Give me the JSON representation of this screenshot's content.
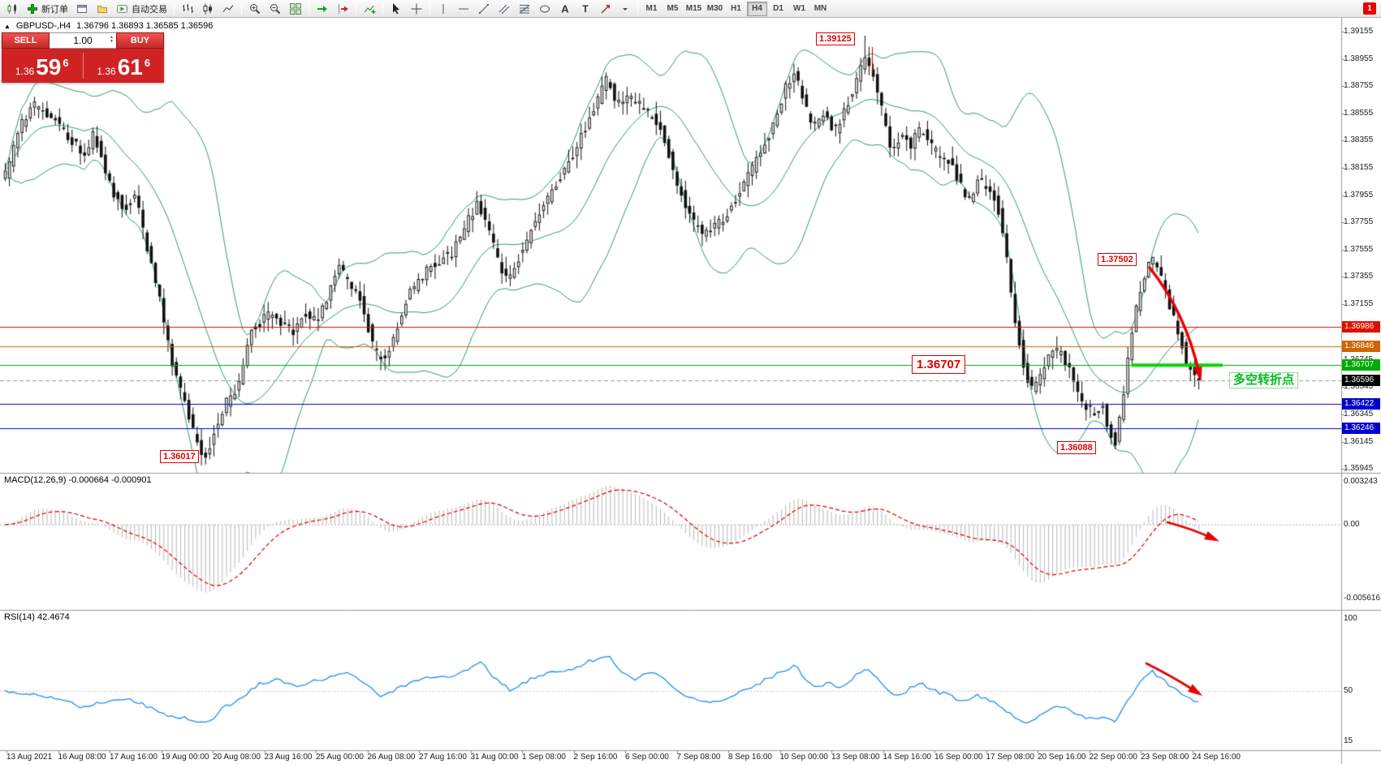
{
  "icons": {
    "collapse_caret": "▲",
    "spin_up": "▲",
    "spin_down": "▼"
  },
  "toolbar": {
    "items": [
      {
        "type": "btn",
        "name": "new-chart",
        "icon": "chart-candles"
      },
      {
        "type": "btn",
        "name": "new-order",
        "icon": "plus-green",
        "label": "新订单"
      },
      {
        "type": "btn",
        "name": "charts-list",
        "icon": "window"
      },
      {
        "type": "btn",
        "name": "profiles",
        "icon": "profile"
      },
      {
        "type": "btn",
        "name": "auto-trading",
        "icon": "autotrade",
        "label": "自动交易"
      },
      {
        "type": "sep"
      },
      {
        "type": "btn",
        "name": "bar-chart-mode",
        "icon": "bars"
      },
      {
        "type": "btn",
        "name": "candle-chart-mode",
        "icon": "candles-mode"
      },
      {
        "type": "btn",
        "name": "line-chart-mode",
        "icon": "line-mode"
      },
      {
        "type": "sep"
      },
      {
        "type": "btn",
        "name": "zoom-in",
        "icon": "zoom-in"
      },
      {
        "type": "btn",
        "name": "zoom-out",
        "icon": "zoom-out"
      },
      {
        "type": "btn",
        "name": "tile-windows",
        "icon": "tile"
      },
      {
        "type": "sep"
      },
      {
        "type": "btn",
        "name": "auto-scroll",
        "icon": "autoscroll"
      },
      {
        "type": "btn",
        "name": "chart-shift",
        "icon": "shift"
      },
      {
        "type": "sep"
      },
      {
        "type": "btn",
        "name": "indicators",
        "icon": "indicators"
      },
      {
        "type": "sep"
      },
      {
        "type": "btn",
        "name": "cursor-tool",
        "icon": "cursor"
      },
      {
        "type": "btn",
        "name": "crosshair-tool",
        "icon": "crosshair"
      },
      {
        "type": "sep"
      },
      {
        "type": "btn",
        "name": "vertical-line-tool",
        "icon": "vline"
      },
      {
        "type": "btn",
        "name": "horizontal-line-tool",
        "icon": "hline"
      },
      {
        "type": "btn",
        "name": "trendline-tool",
        "icon": "trendline"
      },
      {
        "type": "btn",
        "name": "channel-tool",
        "icon": "channel"
      },
      {
        "type": "btn",
        "name": "fibonacci-tool",
        "icon": "fibo"
      },
      {
        "type": "btn",
        "name": "shapes-tool",
        "icon": "shapes"
      },
      {
        "type": "btn",
        "name": "text-tool",
        "icon": "text-a"
      },
      {
        "type": "btn",
        "name": "label-tool",
        "icon": "label-t"
      },
      {
        "type": "btn",
        "name": "arrows-tool",
        "icon": "arrows-tool"
      },
      {
        "type": "btn",
        "name": "objects-dropdown",
        "icon": "caret-down"
      },
      {
        "type": "sep"
      },
      {
        "type": "tf",
        "label": "M1"
      },
      {
        "type": "tf",
        "label": "M5"
      },
      {
        "type": "tf",
        "label": "M15"
      },
      {
        "type": "tf",
        "label": "M30"
      },
      {
        "type": "tf",
        "label": "H1"
      },
      {
        "type": "tf",
        "label": "H4"
      },
      {
        "type": "tf",
        "label": "D1"
      },
      {
        "type": "tf",
        "label": "W1"
      },
      {
        "type": "tf",
        "label": "MN"
      }
    ],
    "active_timeframe": "H4",
    "notification_badge": "1"
  },
  "chart_header": {
    "symbol": "GBPUSD-,H4",
    "ohlc": "1.36796 1.36893 1.36585 1.36596"
  },
  "quote_panel": {
    "sell_label": "SELL",
    "buy_label": "BUY",
    "lot_size": "1.00",
    "sell_price": {
      "small": "1.36",
      "big": "59",
      "sup": "6"
    },
    "buy_price": {
      "small": "1.36",
      "big": "61",
      "sup": "6"
    },
    "panel_color": "#cf2323"
  },
  "chart_data": {
    "type": "candlestick",
    "symbol": "GBPUSD-",
    "timeframe": "H4",
    "ohlc_display": {
      "open": "1.36796",
      "high": "1.36893",
      "low": "1.36585",
      "close": "1.36596"
    },
    "y_axis": {
      "labels": [
        "1.39155",
        "1.38955",
        "1.38755",
        "1.38555",
        "1.38355",
        "1.38155",
        "1.37955",
        "1.37755",
        "1.37555",
        "1.37355",
        "1.37155",
        "1.36745",
        "1.36545",
        "1.36345",
        "1.36145",
        "1.35945"
      ]
    },
    "x_axis": {
      "labels": [
        "13 Aug 2021",
        "16 Aug 08:00",
        "17 Aug 16:00",
        "19 Aug 00:00",
        "20 Aug 08:00",
        "23 Aug 16:00",
        "25 Aug 00:00",
        "26 Aug 08:00",
        "27 Aug 16:00",
        "31 Aug 00:00",
        "1 Sep 08:00",
        "2 Sep 16:00",
        "6 Sep 00:00",
        "7 Sep 08:00",
        "8 Sep 16:00",
        "10 Sep 00:00",
        "13 Sep 08:00",
        "14 Sep 16:00",
        "16 Sep 00:00",
        "17 Sep 08:00",
        "20 Sep 16:00",
        "22 Sep 00:00",
        "23 Sep 08:00",
        "24 Sep 16:00"
      ]
    },
    "price_path": [
      [
        0.004,
        1.381
      ],
      [
        0.015,
        1.3845
      ],
      [
        0.026,
        1.3862
      ],
      [
        0.04,
        1.3855
      ],
      [
        0.055,
        1.384
      ],
      [
        0.07,
        1.3825
      ],
      [
        0.077,
        1.3842
      ],
      [
        0.092,
        1.38
      ],
      [
        0.103,
        1.3785
      ],
      [
        0.112,
        1.3795
      ],
      [
        0.121,
        1.376
      ],
      [
        0.132,
        1.372
      ],
      [
        0.143,
        1.3672
      ],
      [
        0.154,
        1.364
      ],
      [
        0.163,
        1.3615
      ],
      [
        0.17,
        1.3602
      ],
      [
        0.18,
        1.3628
      ],
      [
        0.189,
        1.3645
      ],
      [
        0.198,
        1.3655
      ],
      [
        0.208,
        1.3698
      ],
      [
        0.216,
        1.3702
      ],
      [
        0.226,
        1.371
      ],
      [
        0.235,
        1.37
      ],
      [
        0.244,
        1.3695
      ],
      [
        0.253,
        1.371
      ],
      [
        0.263,
        1.3702
      ],
      [
        0.273,
        1.3722
      ],
      [
        0.282,
        1.3742
      ],
      [
        0.292,
        1.373
      ],
      [
        0.301,
        1.3718
      ],
      [
        0.31,
        1.3685
      ],
      [
        0.319,
        1.3672
      ],
      [
        0.329,
        1.3692
      ],
      [
        0.337,
        1.3718
      ],
      [
        0.347,
        1.373
      ],
      [
        0.357,
        1.3742
      ],
      [
        0.367,
        1.3748
      ],
      [
        0.376,
        1.3752
      ],
      [
        0.387,
        1.3772
      ],
      [
        0.398,
        1.379
      ],
      [
        0.407,
        1.3772
      ],
      [
        0.416,
        1.3742
      ],
      [
        0.424,
        1.3732
      ],
      [
        0.433,
        1.3752
      ],
      [
        0.442,
        1.3768
      ],
      [
        0.453,
        1.3788
      ],
      [
        0.462,
        1.3802
      ],
      [
        0.472,
        1.3815
      ],
      [
        0.482,
        1.3835
      ],
      [
        0.492,
        1.3852
      ],
      [
        0.501,
        1.3872
      ],
      [
        0.506,
        1.3882
      ],
      [
        0.514,
        1.3862
      ],
      [
        0.522,
        1.3868
      ],
      [
        0.532,
        1.3862
      ],
      [
        0.541,
        1.3855
      ],
      [
        0.55,
        1.3848
      ],
      [
        0.559,
        1.382
      ],
      [
        0.567,
        1.3798
      ],
      [
        0.576,
        1.3778
      ],
      [
        0.585,
        1.3768
      ],
      [
        0.596,
        1.3772
      ],
      [
        0.605,
        1.378
      ],
      [
        0.615,
        1.3795
      ],
      [
        0.625,
        1.3812
      ],
      [
        0.635,
        1.3828
      ],
      [
        0.644,
        1.3845
      ],
      [
        0.654,
        1.3872
      ],
      [
        0.662,
        1.3888
      ],
      [
        0.669,
        1.3868
      ],
      [
        0.677,
        1.3845
      ],
      [
        0.686,
        1.3855
      ],
      [
        0.696,
        1.3842
      ],
      [
        0.704,
        1.3858
      ],
      [
        0.713,
        1.3875
      ],
      [
        0.721,
        1.3896
      ],
      [
        0.729,
        1.388
      ],
      [
        0.736,
        1.3855
      ],
      [
        0.743,
        1.3825
      ],
      [
        0.751,
        1.384
      ],
      [
        0.759,
        1.3832
      ],
      [
        0.768,
        1.3845
      ],
      [
        0.776,
        1.3832
      ],
      [
        0.785,
        1.3822
      ],
      [
        0.794,
        1.3818
      ],
      [
        0.801,
        1.3802
      ],
      [
        0.809,
        1.3792
      ],
      [
        0.816,
        1.3808
      ],
      [
        0.823,
        1.38
      ],
      [
        0.831,
        1.3792
      ],
      [
        0.839,
        1.3752
      ],
      [
        0.845,
        1.3712
      ],
      [
        0.853,
        1.3672
      ],
      [
        0.86,
        1.3652
      ],
      [
        0.868,
        1.3662
      ],
      [
        0.875,
        1.3678
      ],
      [
        0.883,
        1.3682
      ],
      [
        0.89,
        1.3672
      ],
      [
        0.897,
        1.3652
      ],
      [
        0.905,
        1.3642
      ],
      [
        0.912,
        1.3636
      ],
      [
        0.919,
        1.3642
      ],
      [
        0.924,
        1.3626
      ],
      [
        0.93,
        1.361
      ],
      [
        0.937,
        1.3648
      ],
      [
        0.943,
        1.3688
      ],
      [
        0.95,
        1.3722
      ],
      [
        0.956,
        1.3742
      ],
      [
        0.961,
        1.375
      ],
      [
        0.967,
        1.3738
      ],
      [
        0.973,
        1.3722
      ],
      [
        0.979,
        1.3705
      ],
      [
        0.985,
        1.3688
      ],
      [
        0.99,
        1.3672
      ],
      [
        0.996,
        1.3662
      ],
      [
        1.0,
        1.366
      ]
    ],
    "extremes": [
      {
        "t": 0.17,
        "type": "low",
        "value": 1.36017
      },
      {
        "t": 0.721,
        "type": "high",
        "value": 1.39125
      },
      {
        "t": 0.93,
        "type": "low",
        "value": 1.36088
      },
      {
        "t": 0.961,
        "type": "high",
        "value": 1.37502
      }
    ],
    "last_close": 1.36596,
    "levels": [
      {
        "price": 1.36986,
        "label": "1.36986",
        "color": "#dd1100",
        "style": "solid"
      },
      {
        "price": 1.36846,
        "label": "1.36846",
        "color": "#cc6600",
        "style": "solid"
      },
      {
        "price": 1.36707,
        "label": "1.36707",
        "color": "#00aa00",
        "style": "solid"
      },
      {
        "price": 1.36596,
        "label": "1.36596",
        "color": "#000000",
        "style": "dashed",
        "line_color": "#999999"
      },
      {
        "price": 1.36422,
        "label": "1.36422",
        "color": "#0000cc",
        "style": "solid"
      },
      {
        "price": 1.36246,
        "label": "1.36246",
        "color": "#0000cc",
        "style": "solid"
      }
    ],
    "highlight_segment": {
      "price": 1.36707,
      "color": "#00d800"
    },
    "arrow_color": "#e60000",
    "annotations": [
      {
        "id": "high-1",
        "text": "1.39125"
      },
      {
        "id": "high-2",
        "text": "1.37502"
      },
      {
        "id": "level-big",
        "text": "1.36707"
      },
      {
        "id": "low-1",
        "text": "1.36017"
      },
      {
        "id": "low-2",
        "text": "1.36088"
      },
      {
        "id": "note",
        "text": "多空转折点"
      }
    ],
    "indicators": {
      "bollinger": {
        "period": 20,
        "deviation": 2,
        "color": "#2f9e6e"
      },
      "macd": {
        "header": "MACD(12,26,9) -0.000664 -0.000901",
        "axis": [
          "0.003243",
          "0.00",
          "-0.005616"
        ],
        "histogram_color": "#b8b8b8",
        "signal_color": "#dd0000"
      },
      "rsi": {
        "header": "RSI(14) 42.4674",
        "axis": [
          "100",
          "50",
          "15"
        ],
        "color": "#2090f0",
        "path": [
          [
            0,
            50
          ],
          [
            0.022,
            48
          ],
          [
            0.044,
            45
          ],
          [
            0.066,
            38
          ],
          [
            0.081,
            42
          ],
          [
            0.103,
            45
          ],
          [
            0.117,
            40
          ],
          [
            0.136,
            33
          ],
          [
            0.158,
            30
          ],
          [
            0.17,
            28
          ],
          [
            0.183,
            38
          ],
          [
            0.198,
            45
          ],
          [
            0.213,
            55
          ],
          [
            0.227,
            58
          ],
          [
            0.242,
            53
          ],
          [
            0.257,
            56
          ],
          [
            0.275,
            60
          ],
          [
            0.286,
            64
          ],
          [
            0.301,
            55
          ],
          [
            0.315,
            46
          ],
          [
            0.33,
            52
          ],
          [
            0.345,
            58
          ],
          [
            0.359,
            60
          ],
          [
            0.374,
            60
          ],
          [
            0.389,
            65
          ],
          [
            0.4,
            70
          ],
          [
            0.411,
            58
          ],
          [
            0.424,
            50
          ],
          [
            0.44,
            58
          ],
          [
            0.455,
            62
          ],
          [
            0.473,
            65
          ],
          [
            0.488,
            70
          ],
          [
            0.506,
            75
          ],
          [
            0.517,
            62
          ],
          [
            0.528,
            58
          ],
          [
            0.541,
            64
          ],
          [
            0.554,
            58
          ],
          [
            0.565,
            48
          ],
          [
            0.58,
            44
          ],
          [
            0.594,
            42
          ],
          [
            0.609,
            46
          ],
          [
            0.624,
            52
          ],
          [
            0.638,
            58
          ],
          [
            0.653,
            64
          ],
          [
            0.662,
            68
          ],
          [
            0.671,
            58
          ],
          [
            0.679,
            52
          ],
          [
            0.69,
            56
          ],
          [
            0.701,
            52
          ],
          [
            0.712,
            60
          ],
          [
            0.721,
            66
          ],
          [
            0.73,
            60
          ],
          [
            0.74,
            50
          ],
          [
            0.748,
            46
          ],
          [
            0.759,
            52
          ],
          [
            0.769,
            55
          ],
          [
            0.778,
            50
          ],
          [
            0.787,
            48
          ],
          [
            0.796,
            45
          ],
          [
            0.803,
            42
          ],
          [
            0.813,
            47
          ],
          [
            0.822,
            44
          ],
          [
            0.831,
            42
          ],
          [
            0.84,
            35
          ],
          [
            0.85,
            30
          ],
          [
            0.858,
            28
          ],
          [
            0.868,
            33
          ],
          [
            0.877,
            38
          ],
          [
            0.886,
            40
          ],
          [
            0.895,
            35
          ],
          [
            0.905,
            32
          ],
          [
            0.913,
            31
          ],
          [
            0.921,
            33
          ],
          [
            0.929,
            28
          ],
          [
            0.937,
            38
          ],
          [
            0.945,
            48
          ],
          [
            0.952,
            58
          ],
          [
            0.96,
            64
          ],
          [
            0.967,
            60
          ],
          [
            0.974,
            55
          ],
          [
            0.982,
            50
          ],
          [
            0.989,
            46
          ],
          [
            0.996,
            43
          ],
          [
            1.0,
            42.5
          ]
        ]
      }
    }
  }
}
